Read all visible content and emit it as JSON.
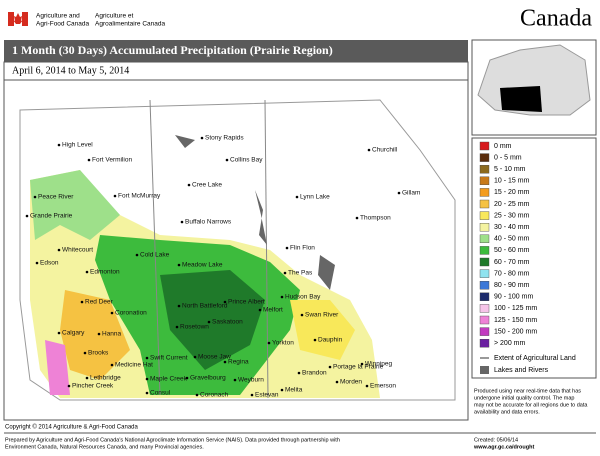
{
  "header": {
    "agency_en": [
      "Agriculture and",
      "Agri-Food Canada"
    ],
    "agency_fr": [
      "Agriculture et",
      "Agroalimentaire Canada"
    ],
    "wordmark": "Canada"
  },
  "title": "1 Month (30 Days) Accumulated Precipitation (Prairie Region)",
  "date_range": "April 6, 2014 to May 5, 2014",
  "legend": {
    "items": [
      {
        "label": "0 mm",
        "color": "#d7191c"
      },
      {
        "label": "0 - 5 mm",
        "color": "#5a2d0c"
      },
      {
        "label": "5 - 10 mm",
        "color": "#8c6a1e"
      },
      {
        "label": "10 - 15 mm",
        "color": "#c87a1a"
      },
      {
        "label": "15 - 20 mm",
        "color": "#f39c1f"
      },
      {
        "label": "20 - 25 mm",
        "color": "#f5c242"
      },
      {
        "label": "25 - 30 mm",
        "color": "#f8e85a"
      },
      {
        "label": "30 - 40 mm",
        "color": "#f4f3a0"
      },
      {
        "label": "40 - 50 mm",
        "color": "#9ee08a"
      },
      {
        "label": "50 - 60 mm",
        "color": "#3dbb3d"
      },
      {
        "label": "60 - 70 mm",
        "color": "#1f7a2a"
      },
      {
        "label": "70 - 80 mm",
        "color": "#8fe3ef"
      },
      {
        "label": "80 - 90 mm",
        "color": "#3c78d8"
      },
      {
        "label": "90 - 100 mm",
        "color": "#1c2a6b"
      },
      {
        "label": "100 - 125 mm",
        "color": "#f6c4e8"
      },
      {
        "label": "125 - 150 mm",
        "color": "#ee82d6"
      },
      {
        "label": "150 - 200 mm",
        "color": "#c23bc0"
      },
      {
        "label": "> 200 mm",
        "color": "#6a1fa0"
      }
    ],
    "agricultural_extent": "Extent of Agricultural Land",
    "lakes": "Lakes and Rivers"
  },
  "cities": [
    "High Level",
    "Fort Vermilion",
    "Stony Rapids",
    "Collins Bay",
    "Churchill",
    "Fort McMurray",
    "Peace River",
    "Cree Lake",
    "Gillam",
    "Grande Prairie",
    "Buffalo Narrows",
    "Lynn Lake",
    "Thompson",
    "Whitecourt",
    "Edson",
    "Cold Lake",
    "Flin Flon",
    "The Pas",
    "Edmonton",
    "Meadow Lake",
    "Hudson Bay",
    "Red Deer",
    "Coronation",
    "North Battleford",
    "Prince Albert",
    "Melfort",
    "Swan River",
    "Calgary",
    "Hanna",
    "Rosetown",
    "Saskatoon",
    "Yorkton",
    "Dauphin",
    "Brooks",
    "Medicine Hat",
    "Swift Current",
    "Moose Jaw",
    "Regina",
    "Brandon",
    "Portage la Prairie",
    "Winnipeg",
    "Lethbridge",
    "Pincher Creek",
    "Maple Creek",
    "Consul",
    "Gravelbourg",
    "Weyburn",
    "Coronach",
    "Estevan",
    "Melita",
    "Morden",
    "Emerson"
  ],
  "note": [
    "Produced using near real-time data that has",
    "undergone initial quality control. The map",
    "may not be accurate for all regions due to data",
    "availability and data errors."
  ],
  "footer": {
    "copyright": "Copyright © 2014 Agriculture & Agri-Food Canada",
    "prepared": [
      "Prepared by Agriculture and Agri-Food Canada's National Agroclimate Information Service (NAIS).  Data provided through partnership with",
      "Environment Canada, Natural Resources Canada, and many Provincial agencies."
    ],
    "created": "Created: 05/06/14",
    "url": "www.agr.gc.ca/drought"
  }
}
